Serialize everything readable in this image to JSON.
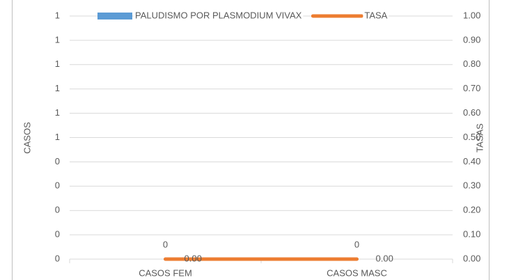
{
  "chart_data": {
    "type": "bar_line",
    "y_label": "CASOS",
    "y2_label": "TASAS",
    "categories": [
      "CASOS FEM",
      "CASOS MASC"
    ],
    "series": [
      {
        "name": "PALUDISMO POR PLASMODIUM VIVAX",
        "type": "bar",
        "color": "#5b9bd5",
        "values": [
          0,
          0
        ]
      },
      {
        "name": "TASA",
        "type": "line",
        "axis": "y2",
        "color": "#ed7d31",
        "values": [
          0,
          0
        ],
        "value_labels": [
          "0.00",
          "0.00"
        ]
      }
    ],
    "ylim": [
      0,
      1
    ],
    "yticks": [
      0,
      {
        "value": 0.1,
        "label": "0"
      },
      {
        "value": 0.2,
        "label": "0"
      },
      {
        "value": 0.3,
        "label": "0"
      },
      {
        "value": 0.4,
        "label": "0"
      },
      {
        "value": 0.5,
        "label": "1"
      },
      {
        "value": 0.6,
        "label": "1"
      },
      {
        "value": 0.7,
        "label": "1"
      },
      {
        "value": 0.8,
        "label": "1"
      },
      {
        "value": 0.9,
        "label": "1"
      },
      1
    ],
    "y2lim": [
      0,
      1
    ],
    "y2ticks": [
      {
        "value": 0,
        "label": "0.00"
      },
      {
        "value": 0.1,
        "label": "0.10"
      },
      {
        "value": 0.2,
        "label": "0.20"
      },
      {
        "value": 0.3,
        "label": "0.30"
      },
      {
        "value": 0.4,
        "label": "0.40"
      },
      {
        "value": 0.5,
        "label": "0.50"
      },
      {
        "value": 0.6,
        "label": "0.60"
      },
      {
        "value": 0.7,
        "label": "0.70"
      },
      {
        "value": 0.8,
        "label": "0.80"
      },
      {
        "value": 0.9,
        "label": "0.90"
      },
      {
        "value": 1,
        "label": "1.00"
      }
    ],
    "grid": true,
    "legend": "top"
  }
}
